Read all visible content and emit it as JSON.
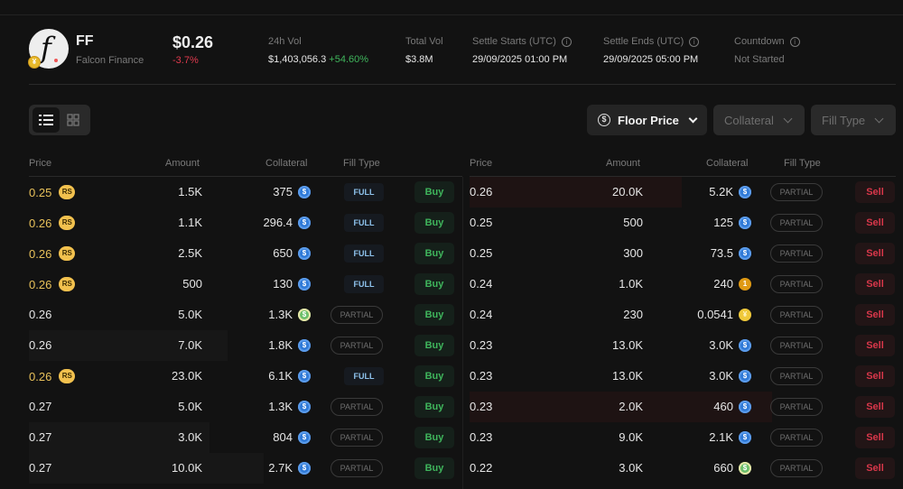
{
  "token": {
    "ticker": "FF",
    "name": "Falcon Finance",
    "price": "$0.26",
    "change": "-3.7%"
  },
  "stats": {
    "vol24h": {
      "label": "24h Vol",
      "value": "$1,403,056.3",
      "change": "+54.60%"
    },
    "total_vol": {
      "label": "Total Vol",
      "value": "$3.8M"
    },
    "settle_starts": {
      "label": "Settle Starts (UTC)",
      "value": "29/09/2025 01:00 PM"
    },
    "settle_ends": {
      "label": "Settle Ends (UTC)",
      "value": "29/09/2025 05:00 PM"
    },
    "countdown": {
      "label": "Countdown",
      "value": "Not Started"
    }
  },
  "filters": {
    "floor_price": "Floor Price",
    "collateral": "Collateral",
    "fill_type": "Fill Type"
  },
  "columns": {
    "price": "Price",
    "amount": "Amount",
    "collateral": "Collateral",
    "fill_type": "Fill Type"
  },
  "labels": {
    "rs": "RS",
    "full": "FULL",
    "partial": "PARTIAL",
    "buy": "Buy",
    "sell": "Sell"
  },
  "buy_orders": [
    {
      "price": "0.25",
      "rs": true,
      "amount": "1.5K",
      "collateral": "375",
      "coin": "usdc",
      "fill": "FULL",
      "depth": 0
    },
    {
      "price": "0.26",
      "rs": true,
      "amount": "1.1K",
      "collateral": "296.4",
      "coin": "usdc",
      "fill": "FULL",
      "depth": 0
    },
    {
      "price": "0.26",
      "rs": true,
      "amount": "2.5K",
      "collateral": "650",
      "coin": "usdc",
      "fill": "FULL",
      "depth": 0
    },
    {
      "price": "0.26",
      "rs": true,
      "amount": "500",
      "collateral": "130",
      "coin": "usdc",
      "fill": "FULL",
      "depth": 0
    },
    {
      "price": "0.26",
      "rs": false,
      "amount": "5.0K",
      "collateral": "1.3K",
      "coin": "usdt",
      "fill": "PARTIAL",
      "depth": 0
    },
    {
      "price": "0.26",
      "rs": false,
      "amount": "7.0K",
      "collateral": "1.8K",
      "coin": "usdc",
      "fill": "PARTIAL",
      "depth": 220
    },
    {
      "price": "0.26",
      "rs": true,
      "amount": "23.0K",
      "collateral": "6.1K",
      "coin": "usdc",
      "fill": "FULL",
      "depth": 0
    },
    {
      "price": "0.27",
      "rs": false,
      "amount": "5.0K",
      "collateral": "1.3K",
      "coin": "usdc",
      "fill": "PARTIAL",
      "depth": 0
    },
    {
      "price": "0.27",
      "rs": false,
      "amount": "3.0K",
      "collateral": "804",
      "coin": "usdc",
      "fill": "PARTIAL",
      "depth": 200
    },
    {
      "price": "0.27",
      "rs": false,
      "amount": "10.0K",
      "collateral": "2.7K",
      "coin": "usdc",
      "fill": "PARTIAL",
      "depth": 260
    }
  ],
  "sell_orders": [
    {
      "price": "0.26",
      "amount": "20.0K",
      "collateral": "5.2K",
      "coin": "usdc",
      "fill": "PARTIAL",
      "depth": 235
    },
    {
      "price": "0.25",
      "amount": "500",
      "collateral": "125",
      "coin": "usdc",
      "fill": "PARTIAL",
      "depth": 0
    },
    {
      "price": "0.25",
      "amount": "300",
      "collateral": "73.5",
      "coin": "usdc",
      "fill": "PARTIAL",
      "depth": 0
    },
    {
      "price": "0.24",
      "amount": "1.0K",
      "collateral": "240",
      "coin": "gold",
      "fill": "PARTIAL",
      "depth": 0
    },
    {
      "price": "0.24",
      "amount": "230",
      "collateral": "0.0541",
      "coin": "yellow",
      "fill": "PARTIAL",
      "depth": 0
    },
    {
      "price": "0.23",
      "amount": "13.0K",
      "collateral": "3.0K",
      "coin": "usdc",
      "fill": "PARTIAL",
      "depth": 0
    },
    {
      "price": "0.23",
      "amount": "13.0K",
      "collateral": "3.0K",
      "coin": "usdc",
      "fill": "PARTIAL",
      "depth": 0
    },
    {
      "price": "0.23",
      "amount": "2.0K",
      "collateral": "460",
      "coin": "usdc",
      "fill": "PARTIAL",
      "depth": 335
    },
    {
      "price": "0.23",
      "amount": "9.0K",
      "collateral": "2.1K",
      "coin": "usdc",
      "fill": "PARTIAL",
      "depth": 0
    },
    {
      "price": "0.22",
      "amount": "3.0K",
      "collateral": "660",
      "coin": "usdt",
      "fill": "PARTIAL",
      "depth": 0
    }
  ],
  "colors": {
    "background": "#121212",
    "buy": "#3fb55c",
    "sell": "#d8374a",
    "negative": "#e03a4e",
    "rs_badge": "#f2c14e",
    "full_text": "#8fc4ee"
  }
}
